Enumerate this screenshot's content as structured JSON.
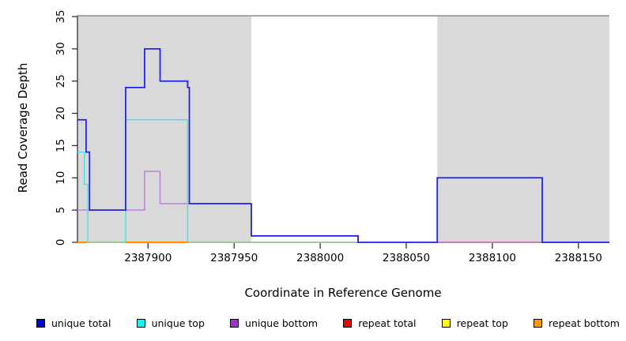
{
  "chart_data": {
    "type": "line",
    "subtype": "step-coverage-plot",
    "title": "",
    "xlabel": "Coordinate in Reference Genome",
    "ylabel": "Read Coverage Depth",
    "xlim": [
      2387859,
      2388168
    ],
    "ylim": [
      0,
      35
    ],
    "x_ticks": [
      2387900,
      2387950,
      2388000,
      2388050,
      2388100,
      2388150
    ],
    "y_ticks": [
      0,
      5,
      10,
      15,
      20,
      25,
      30,
      35
    ],
    "grid": false,
    "legend_position": "bottom",
    "axis_color": "#2f2f2f",
    "top_border_color": "#9a9a9a",
    "shaded_regions": {
      "color": "#d9d9d9",
      "regions": [
        [
          2387859,
          2387960
        ],
        [
          2388068,
          2388168
        ]
      ]
    },
    "series": [
      {
        "name": "unique total",
        "color": "#2323e8",
        "legend_color": "#0000e8",
        "steps": [
          [
            2387859,
            19
          ],
          [
            2387864,
            14
          ],
          [
            2387866,
            5
          ],
          [
            2387887,
            24
          ],
          [
            2387898,
            30
          ],
          [
            2387907,
            25
          ],
          [
            2387923,
            24
          ],
          [
            2387924,
            6
          ],
          [
            2387960,
            1
          ],
          [
            2388022,
            0
          ],
          [
            2388068,
            10
          ],
          [
            2388129,
            0
          ]
        ]
      },
      {
        "name": "unique top",
        "color": "#55dde6",
        "legend_color": "#00ffff",
        "skip_zero": true,
        "steps": [
          [
            2387859,
            14
          ],
          [
            2387863,
            9
          ],
          [
            2387865,
            0
          ],
          [
            2387887,
            19
          ],
          [
            2387923,
            0
          ]
        ]
      },
      {
        "name": "unique bottom",
        "color": "#bd7fd9",
        "legend_color": "#9933cc",
        "steps": [
          [
            2387859,
            5
          ],
          [
            2387898,
            11
          ],
          [
            2387907,
            6
          ],
          [
            2387960,
            1
          ],
          [
            2388022,
            0
          ]
        ]
      },
      {
        "name": "repeat total",
        "color": "#e83240",
        "legend_color": "#f00000",
        "render": "zero_segments",
        "steps": [
          [
            2387859,
            0
          ]
        ]
      },
      {
        "name": "repeat top",
        "color": "#ffff00",
        "legend_color": "#ffff00",
        "render": "zero_segments",
        "steps": [
          [
            2387859,
            0
          ]
        ]
      },
      {
        "name": "repeat bottom",
        "color": "#ff9000",
        "legend_color": "#ff9900",
        "render": "zero_segments",
        "steps": [
          [
            2387859,
            0
          ]
        ]
      }
    ],
    "zero_line_segments": [
      {
        "x1": 2387859,
        "x2": 2387865,
        "color": "#ff9000",
        "series": "repeat bottom"
      },
      {
        "x1": 2387865,
        "x2": 2387887,
        "color": "#84c884",
        "series": "unique top over repeat bottom"
      },
      {
        "x1": 2387887,
        "x2": 2387923,
        "color": "#ff9000",
        "series": "repeat bottom"
      },
      {
        "x1": 2387923,
        "x2": 2388022,
        "color": "#84c884",
        "series": "unique top over repeat bottom"
      },
      {
        "x1": 2388068,
        "x2": 2388129,
        "color": "#e83240",
        "series": "repeat total"
      }
    ]
  }
}
